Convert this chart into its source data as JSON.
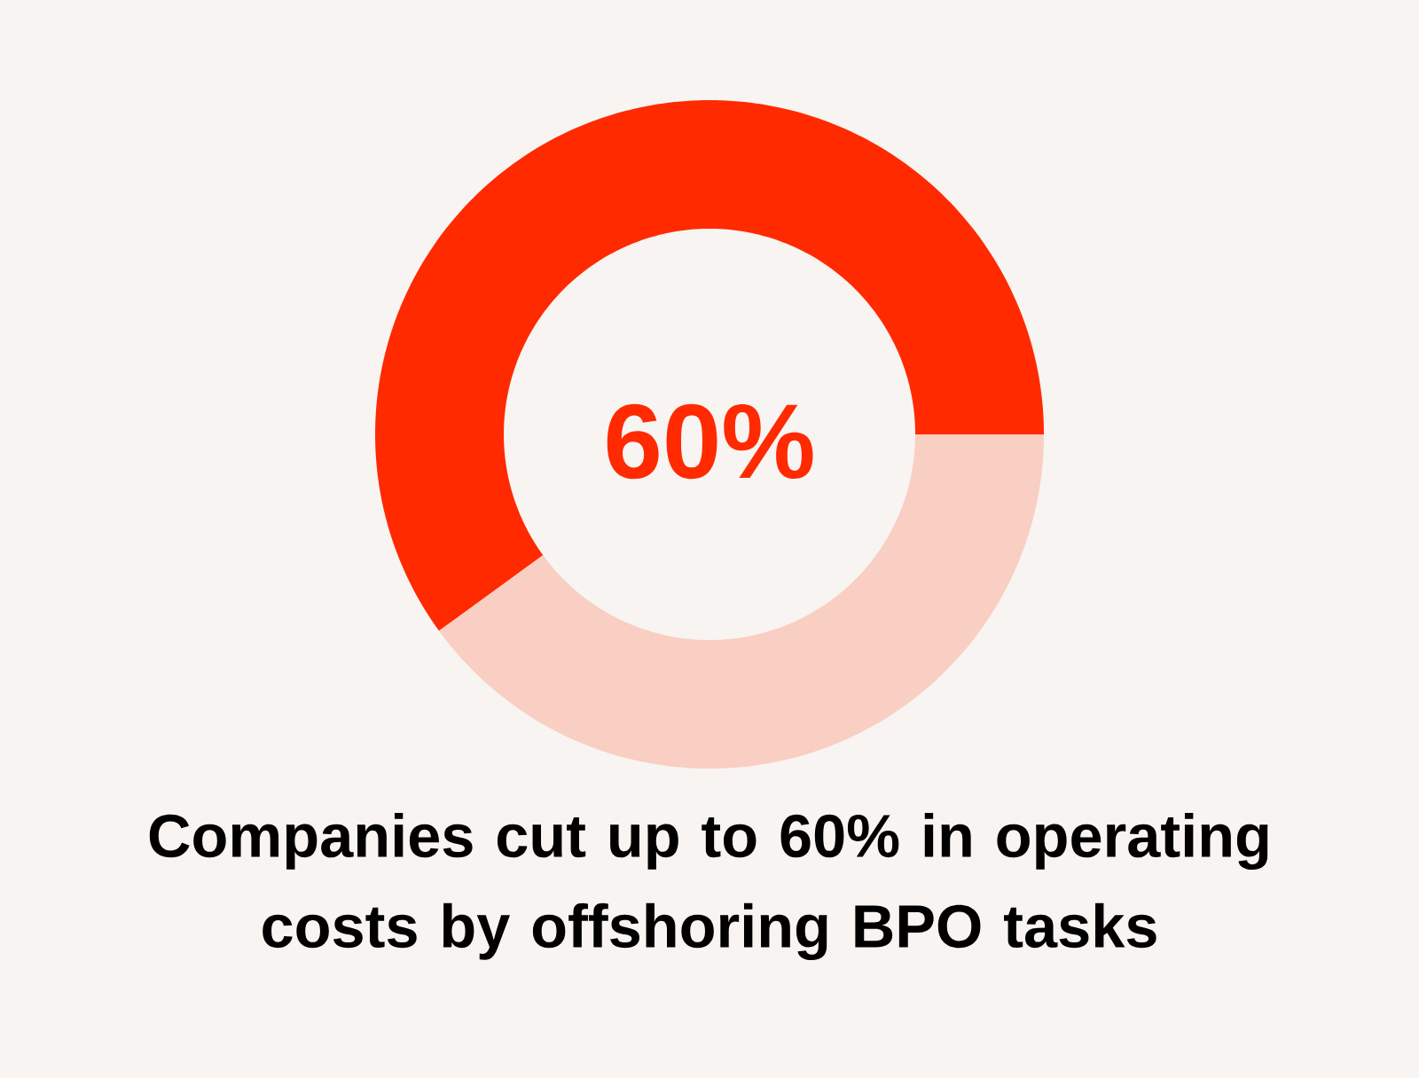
{
  "chart_data": {
    "type": "donut",
    "title": "Companies cut up to 60% in operating costs by offshoring BPO tasks",
    "categories": [
      null,
      null
    ],
    "values": [
      60,
      40
    ],
    "colors": [
      "#ff2a00",
      "#f8cfc2"
    ],
    "annotations": [
      "60%"
    ]
  }
}
